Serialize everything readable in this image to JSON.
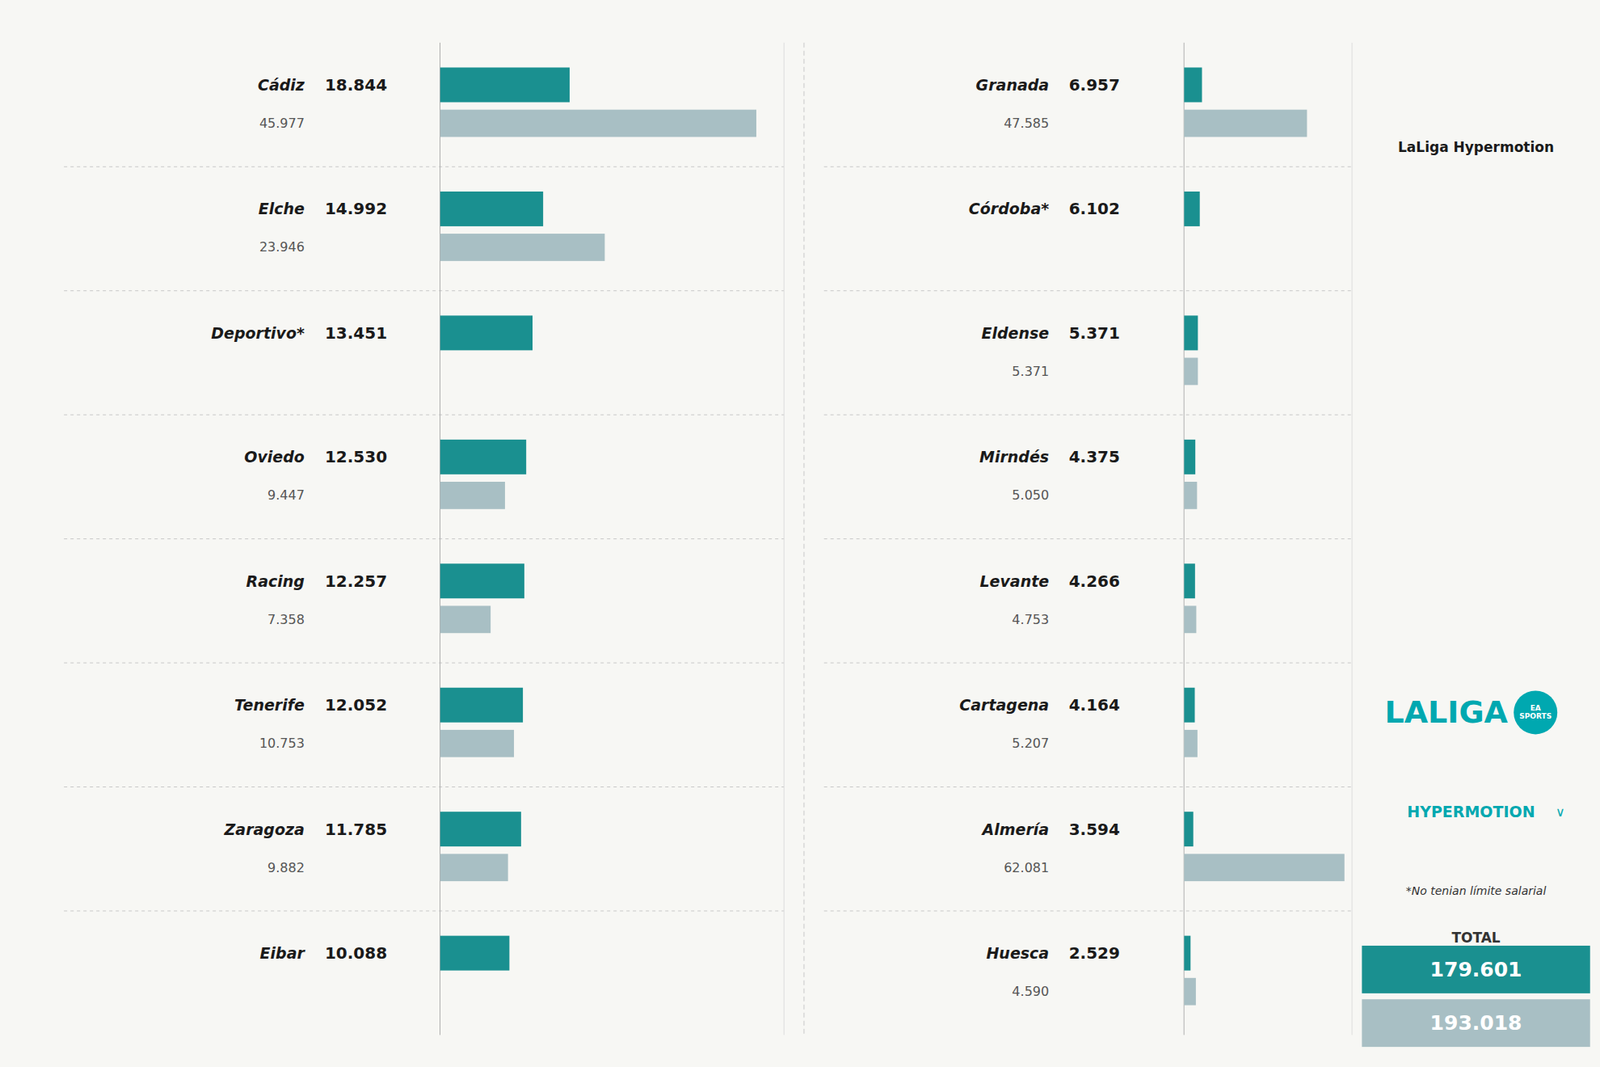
{
  "chart_data": [
    {
      "type": "bar",
      "orientation": "horizontal",
      "data_labels": true,
      "tick_labels": "y",
      "grid": false,
      "categories": [
        "Cádiz",
        "Elche",
        "Deportivo*",
        "Oviedo",
        "Racing",
        "Tenerife",
        "Zaragoza",
        "Eibar"
      ],
      "xlim": [
        0,
        50
      ],
      "series": [
        {
          "color": "#1a9090",
          "values": [
            18.844,
            14.992,
            13.451,
            12.53,
            12.257,
            12.052,
            11.785,
            10.088
          ],
          "value_labels": [
            "18.844",
            "14.992",
            "13.451",
            "12.530",
            "12.257",
            "12.052",
            "11.785",
            "10.088"
          ]
        },
        {
          "color": "#a8bfc4",
          "values": [
            45.977,
            23.946,
            null,
            9.447,
            7.358,
            10.753,
            9.882,
            null
          ],
          "value_labels": [
            "45.977",
            "23.946",
            null,
            "9.447",
            "7.358",
            "10.753",
            "9.882",
            null
          ]
        }
      ]
    },
    {
      "type": "bar",
      "orientation": "horizontal",
      "data_labels": true,
      "tick_labels": "y",
      "grid": false,
      "categories": [
        "Granada",
        "Córdoba*",
        "Eldense",
        "Mirndés",
        "Levante",
        "Cartagena",
        "Almería",
        "Huesca"
      ],
      "xlim": [
        0,
        65
      ],
      "series": [
        {
          "color": "#1a9090",
          "values": [
            6.957,
            6.102,
            5.371,
            4.375,
            4.266,
            4.164,
            3.594,
            2.529
          ],
          "value_labels": [
            "6.957",
            "6.102",
            "5.371",
            "4.375",
            "4.266",
            "4.164",
            "3.594",
            "2.529"
          ]
        },
        {
          "color": "#a8bfc4",
          "values": [
            47.585,
            null,
            5.371,
            5.05,
            4.753,
            5.207,
            62.081,
            4.59
          ],
          "value_labels": [
            "47.585",
            null,
            "5.371",
            "5.050",
            "4.753",
            "5.207",
            "62.081",
            "4.590"
          ]
        }
      ],
      "annotations": [
        "LaLiga Hypermotion",
        "LALIGA",
        "EA\nSPORTS",
        "HYPERMOTION",
        "∨",
        "*No tenian límite salarial",
        "TOTAL",
        "179.601",
        "193.018"
      ]
    }
  ]
}
